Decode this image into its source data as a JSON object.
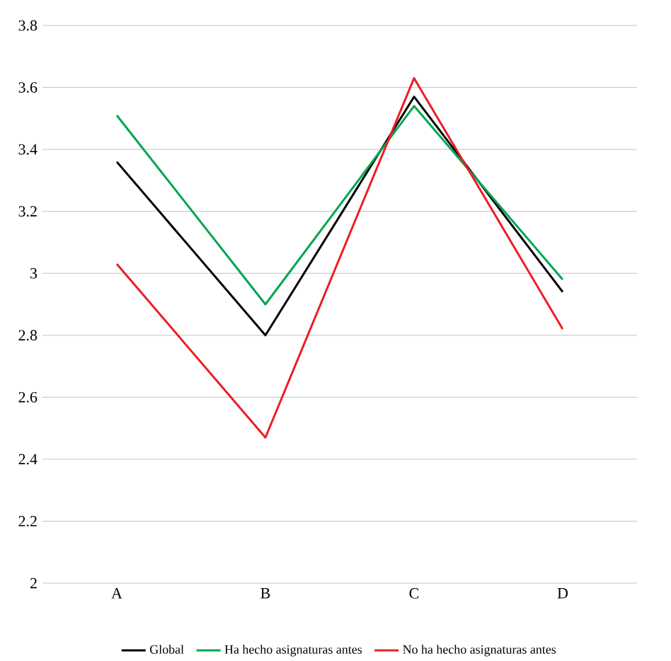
{
  "chart_data": {
    "type": "line",
    "categories": [
      "A",
      "B",
      "C",
      "D"
    ],
    "series": [
      {
        "name": "Global",
        "color": "#000000",
        "values": [
          3.36,
          2.8,
          3.57,
          2.94
        ]
      },
      {
        "name": "Ha hecho asignaturas antes",
        "color": "#00a651",
        "values": [
          3.51,
          2.9,
          3.54,
          2.98
        ]
      },
      {
        "name": "No ha hecho asignaturas antes",
        "color": "#ed1c24",
        "values": [
          3.03,
          2.47,
          3.63,
          2.82
        ]
      }
    ],
    "ylim": [
      2,
      3.8
    ],
    "yticks": [
      2,
      2.2,
      2.4,
      2.6,
      2.8,
      3,
      3.2,
      3.4,
      3.6,
      3.8
    ],
    "grid": "y",
    "legend": "bottom",
    "marker": "none",
    "line_style": "solid"
  }
}
